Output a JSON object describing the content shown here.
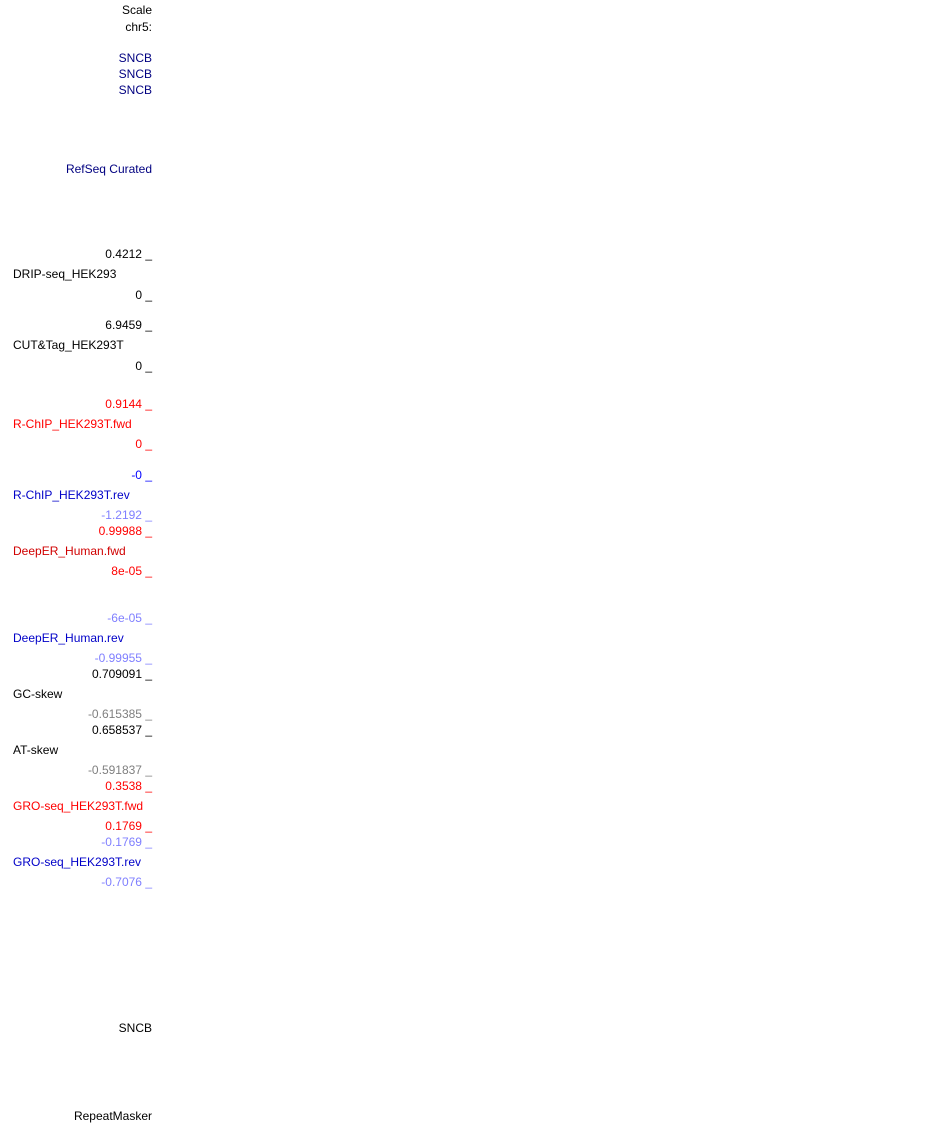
{
  "header": {
    "scale_label": "Scale",
    "chrom_label": "chr5:"
  },
  "genes": {
    "sncb_1": "SNCB",
    "sncb_2": "SNCB",
    "sncb_3": "SNCB"
  },
  "refseq": {
    "label": "RefSeq Curated"
  },
  "tracks": {
    "drip_seq": {
      "max": "0.4212 _",
      "name": "DRIP-seq_HEK293",
      "min": "0 _"
    },
    "cut_tag": {
      "max": "6.9459 _",
      "name": "CUT&Tag_HEK293T",
      "min": "0 _"
    },
    "rchip_fwd": {
      "max": "0.9144 _",
      "name": "R-ChIP_HEK293T.fwd",
      "min": "0 _"
    },
    "rchip_rev": {
      "max": "-0 _",
      "name": "R-ChIP_HEK293T.rev",
      "min": "-1.2192 _"
    },
    "deeper_fwd": {
      "max": "0.99988 _",
      "name": "DeepER_Human.fwd",
      "min": "8e-05 _"
    },
    "deeper_rev": {
      "max": "-6e-05 _",
      "name": "DeepER_Human.rev",
      "min": "-0.99955 _"
    },
    "gc_skew": {
      "max": "0.709091 _",
      "name": "GC-skew",
      "min": "-0.615385 _"
    },
    "at_skew": {
      "max": "0.658537 _",
      "name": "AT-skew",
      "min": "-0.591837 _"
    },
    "gro_fwd": {
      "max": "0.3538 _",
      "name": "GRO-seq_HEK293T.fwd",
      "min": "0.1769 _"
    },
    "gro_rev": {
      "max": "-0.1769 _",
      "name": "GRO-seq_HEK293T.rev",
      "min": "-0.7076 _"
    }
  },
  "footer": {
    "sncb_label": "SNCB",
    "repeatmasker_label": "RepeatMasker"
  },
  "colors": {
    "black": "#000000",
    "navy": "#000080",
    "red": "#ff0000",
    "blue": "#0000ff",
    "light_blue": "#7f7fff",
    "gray": "#7f7f7f"
  }
}
